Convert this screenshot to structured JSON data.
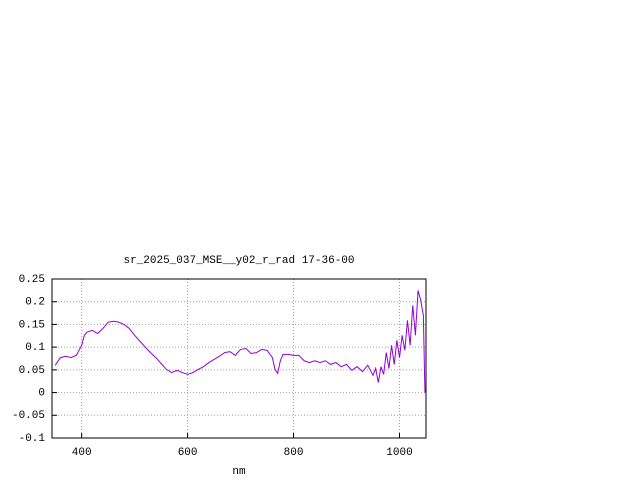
{
  "chart_data": {
    "type": "line",
    "title": "sr_2025_037_MSE__y02_r_rad 17-36-00",
    "x_label": "nm",
    "x": [
      350,
      360,
      370,
      380,
      390,
      400,
      405,
      410,
      420,
      430,
      440,
      450,
      460,
      470,
      480,
      490,
      500,
      510,
      520,
      530,
      540,
      550,
      560,
      570,
      580,
      590,
      600,
      610,
      620,
      630,
      640,
      650,
      660,
      670,
      680,
      690,
      700,
      710,
      720,
      730,
      740,
      750,
      760,
      765,
      770,
      775,
      780,
      790,
      800,
      810,
      820,
      830,
      840,
      850,
      860,
      870,
      880,
      890,
      900,
      910,
      920,
      930,
      940,
      950,
      955,
      960,
      965,
      970,
      975,
      980,
      985,
      990,
      995,
      1000,
      1005,
      1010,
      1015,
      1020,
      1025,
      1030,
      1035,
      1040,
      1045,
      1048
    ],
    "series": [
      {
        "name": "sr_2025_037_MSE__y02_r_rad",
        "color": "#9400d3",
        "values": [
          0.06,
          0.077,
          0.08,
          0.077,
          0.082,
          0.104,
          0.126,
          0.133,
          0.137,
          0.13,
          0.141,
          0.155,
          0.157,
          0.155,
          0.15,
          0.141,
          0.126,
          0.113,
          0.1,
          0.088,
          0.077,
          0.064,
          0.051,
          0.044,
          0.049,
          0.044,
          0.04,
          0.044,
          0.051,
          0.057,
          0.066,
          0.073,
          0.08,
          0.088,
          0.09,
          0.082,
          0.095,
          0.097,
          0.086,
          0.088,
          0.095,
          0.093,
          0.077,
          0.051,
          0.042,
          0.07,
          0.084,
          0.084,
          0.082,
          0.082,
          0.07,
          0.066,
          0.07,
          0.066,
          0.07,
          0.062,
          0.066,
          0.057,
          0.062,
          0.049,
          0.057,
          0.046,
          0.06,
          0.038,
          0.053,
          0.022,
          0.057,
          0.04,
          0.088,
          0.053,
          0.104,
          0.062,
          0.115,
          0.077,
          0.126,
          0.093,
          0.159,
          0.104,
          0.192,
          0.126,
          0.225,
          0.203,
          0.17,
          0
        ]
      }
    ],
    "xlim": [
      344,
      1050
    ],
    "ylim": [
      -0.1,
      0.25
    ],
    "xticks": [
      400,
      600,
      800,
      1000
    ],
    "yticks": [
      -0.1,
      -0.05,
      0,
      0.05,
      0.1,
      0.15,
      0.2,
      0.25
    ],
    "grid": true
  }
}
